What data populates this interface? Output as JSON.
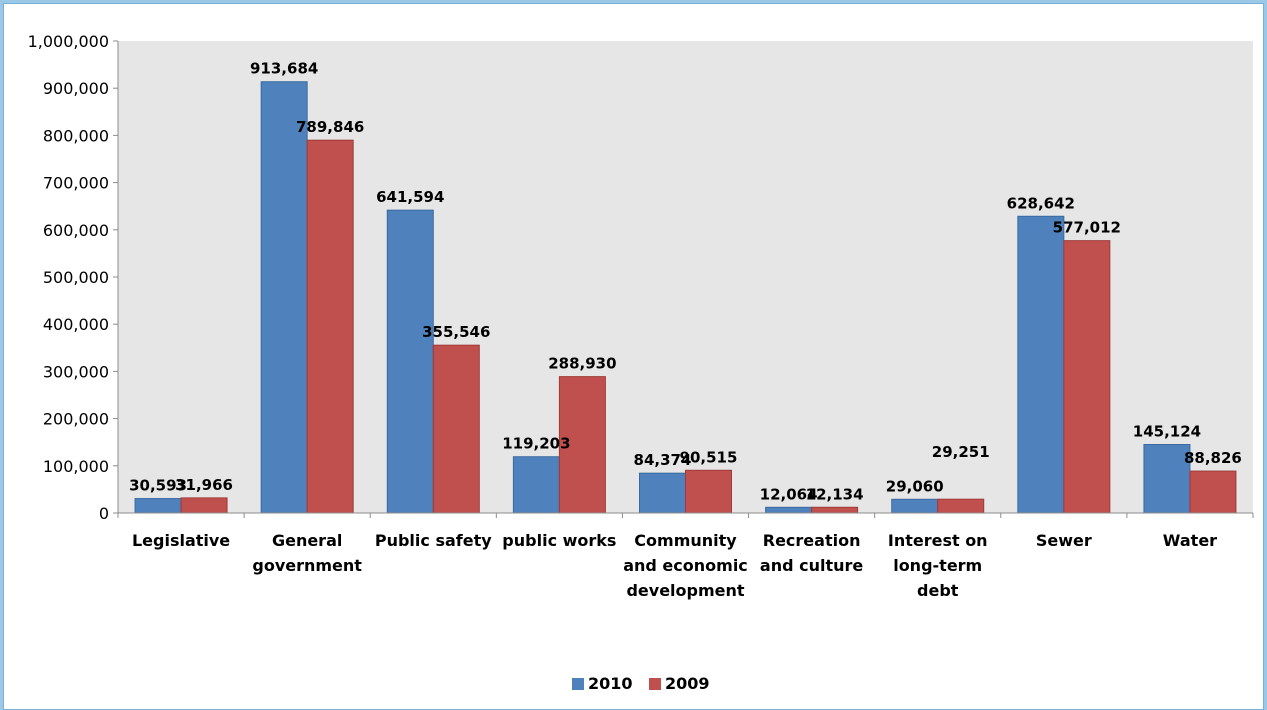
{
  "chart_data": {
    "type": "bar",
    "categories": [
      [
        "Legislative"
      ],
      [
        "General",
        "government"
      ],
      [
        "Public safety"
      ],
      [
        "public works"
      ],
      [
        "Community",
        "and economic",
        "development"
      ],
      [
        "Recreation",
        "and culture"
      ],
      [
        "Interest on",
        "long-term",
        "debt"
      ],
      [
        "Sewer"
      ],
      [
        "Water"
      ]
    ],
    "series": [
      {
        "name": "2010",
        "color": "#4f81bd",
        "values": [
          30593,
          913684,
          641594,
          119203,
          84374,
          12064,
          29060,
          628642,
          145124
        ],
        "labels": [
          "30,593",
          "913,684",
          "641,594",
          "119,203",
          "84,374",
          "12,064",
          "29,060",
          "628,642",
          "145,124"
        ]
      },
      {
        "name": "2009",
        "color": "#c0504d",
        "values": [
          31966,
          789846,
          355546,
          288930,
          90515,
          12134,
          29251,
          577012,
          88826
        ],
        "labels": [
          "31,966",
          "789,846",
          "355,546",
          "288,930",
          "90,515",
          "12,134",
          "29,251",
          "577,012",
          "88,826"
        ]
      }
    ],
    "ylim": [
      0,
      1000000
    ],
    "yticks": [
      0,
      100000,
      200000,
      300000,
      400000,
      500000,
      600000,
      700000,
      800000,
      900000,
      1000000
    ],
    "ytick_labels": [
      "0",
      "100,000",
      "200,000",
      "300,000",
      "400,000",
      "500,000",
      "600,000",
      "700,000",
      "800,000",
      "900,000",
      "1,000,000"
    ],
    "plot_background": "#e6e6e6",
    "grid": false,
    "legend_position": "bottom-center"
  }
}
